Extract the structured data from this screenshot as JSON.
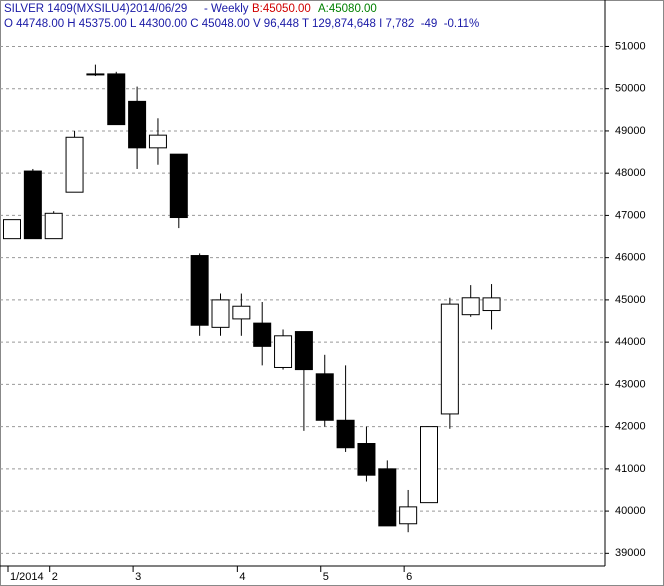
{
  "chart_data": {
    "type": "candlestick",
    "title": "SILVER 1409(MXSILU4)2014/06/29",
    "period": "- Weekly",
    "bid": "B:45050.00",
    "ask": "A:45080.00",
    "quote_line": "O 44748.00 H 45375.00 L 44300.00 C 45048.00 V 96,448 T 129,874,648 I 7,782  -49  -0.11%",
    "categories": [
      "1/2014",
      null,
      "2",
      null,
      null,
      null,
      "3",
      null,
      null,
      null,
      null,
      "4",
      null,
      null,
      null,
      "5",
      null,
      null,
      null,
      "6",
      null,
      null,
      null,
      null
    ],
    "open": [
      46450,
      48050,
      46450,
      47550,
      50330,
      50350,
      49700,
      48600,
      48450,
      46050,
      44350,
      44550,
      44450,
      43400,
      44250,
      43250,
      42150,
      41600,
      41000,
      39700,
      40200,
      42300,
      44650,
      44748
    ],
    "high": [
      46900,
      48100,
      47100,
      49000,
      50570,
      50400,
      50050,
      49300,
      48450,
      46100,
      45150,
      45150,
      44950,
      44300,
      44250,
      43700,
      43450,
      42000,
      41200,
      40500,
      42000,
      45050,
      45350,
      45375
    ],
    "low": [
      46450,
      46450,
      46450,
      47550,
      50300,
      49150,
      48100,
      48200,
      46700,
      44150,
      44150,
      44150,
      43450,
      43350,
      41900,
      42000,
      41400,
      40700,
      39650,
      39500,
      40200,
      41950,
      44600,
      44300
    ],
    "close": [
      46900,
      46450,
      47050,
      48850,
      50350,
      49150,
      48600,
      48900,
      46950,
      44400,
      45000,
      44850,
      43900,
      44150,
      43350,
      42150,
      41500,
      40850,
      39650,
      40100,
      42000,
      44900,
      45050,
      45048
    ],
    "ylim": [
      38700,
      52100
    ],
    "yticks": [
      39000,
      40000,
      41000,
      42000,
      43000,
      44000,
      45000,
      46000,
      47000,
      48000,
      49000,
      50000,
      51000
    ],
    "grid": true,
    "up_color": "#ffffff",
    "down_color": "#000000"
  }
}
